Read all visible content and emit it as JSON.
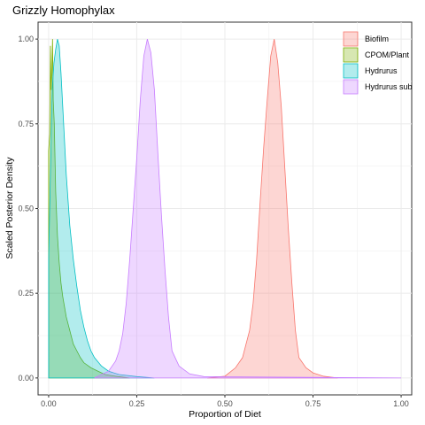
{
  "chart_data": {
    "type": "area",
    "title": "Grizzly Homophylax",
    "xlabel": "Proportion of Diet",
    "ylabel": "Scaled Posterior Density",
    "xlim": [
      -0.03,
      1.03
    ],
    "ylim": [
      -0.05,
      1.05
    ],
    "x_ticks": [
      0.0,
      0.25,
      0.5,
      0.75,
      1.0
    ],
    "x_tick_labels": [
      "0.00",
      "0.25",
      "0.50",
      "0.75",
      "1.00"
    ],
    "y_ticks": [
      0.0,
      0.25,
      0.5,
      0.75,
      1.0
    ],
    "y_tick_labels": [
      "0.00",
      "0.25",
      "0.50",
      "0.75",
      "1.00"
    ],
    "grid": true,
    "legend_position": "top-right",
    "series": [
      {
        "name": "Biofilm",
        "fill": "#F8766D",
        "stroke": "#F8766D",
        "points": [
          [
            0.45,
            0
          ],
          [
            0.5,
            0.005
          ],
          [
            0.53,
            0.03
          ],
          [
            0.55,
            0.06
          ],
          [
            0.57,
            0.14
          ],
          [
            0.58,
            0.22
          ],
          [
            0.59,
            0.35
          ],
          [
            0.6,
            0.52
          ],
          [
            0.61,
            0.68
          ],
          [
            0.62,
            0.82
          ],
          [
            0.63,
            0.95
          ],
          [
            0.64,
            1.0
          ],
          [
            0.65,
            0.93
          ],
          [
            0.66,
            0.8
          ],
          [
            0.67,
            0.62
          ],
          [
            0.68,
            0.44
          ],
          [
            0.69,
            0.28
          ],
          [
            0.7,
            0.14
          ],
          [
            0.71,
            0.06
          ],
          [
            0.73,
            0.03
          ],
          [
            0.75,
            0.015
          ],
          [
            0.78,
            0.005
          ],
          [
            0.82,
            0
          ]
        ]
      },
      {
        "name": "CPOM/Plant",
        "fill": "#7CAE00",
        "stroke": "#7CAE00",
        "points": [
          [
            0.0,
            0
          ],
          [
            0.0,
            0.67
          ],
          [
            0.003,
            0.72
          ],
          [
            0.005,
            0.98
          ],
          [
            0.007,
            0.85
          ],
          [
            0.009,
            0.9
          ],
          [
            0.011,
            1.0
          ],
          [
            0.013,
            0.82
          ],
          [
            0.016,
            0.75
          ],
          [
            0.02,
            0.55
          ],
          [
            0.025,
            0.42
          ],
          [
            0.03,
            0.34
          ],
          [
            0.035,
            0.28
          ],
          [
            0.04,
            0.24
          ],
          [
            0.05,
            0.18
          ],
          [
            0.06,
            0.14
          ],
          [
            0.07,
            0.1
          ],
          [
            0.08,
            0.08
          ],
          [
            0.09,
            0.06
          ],
          [
            0.1,
            0.045
          ],
          [
            0.12,
            0.03
          ],
          [
            0.14,
            0.02
          ],
          [
            0.16,
            0.01
          ],
          [
            0.19,
            0.005
          ],
          [
            0.23,
            0
          ]
        ]
      },
      {
        "name": "Hydrurus",
        "fill": "#00BFC4",
        "stroke": "#00BFC4",
        "points": [
          [
            0.0,
            0
          ],
          [
            0.0,
            0.35
          ],
          [
            0.005,
            0.6
          ],
          [
            0.01,
            0.85
          ],
          [
            0.015,
            0.93
          ],
          [
            0.02,
            0.97
          ],
          [
            0.025,
            1.0
          ],
          [
            0.03,
            0.98
          ],
          [
            0.035,
            0.9
          ],
          [
            0.04,
            0.8
          ],
          [
            0.05,
            0.6
          ],
          [
            0.06,
            0.45
          ],
          [
            0.07,
            0.35
          ],
          [
            0.08,
            0.27
          ],
          [
            0.09,
            0.2
          ],
          [
            0.1,
            0.15
          ],
          [
            0.11,
            0.11
          ],
          [
            0.12,
            0.08
          ],
          [
            0.13,
            0.06
          ],
          [
            0.15,
            0.035
          ],
          [
            0.17,
            0.02
          ],
          [
            0.2,
            0.01
          ],
          [
            0.25,
            0.004
          ],
          [
            0.3,
            0
          ]
        ]
      },
      {
        "name": "Hydrurus sub",
        "fill": "#C77CFF",
        "stroke": "#C77CFF",
        "points": [
          [
            0.13,
            0
          ],
          [
            0.17,
            0.02
          ],
          [
            0.19,
            0.05
          ],
          [
            0.2,
            0.08
          ],
          [
            0.21,
            0.13
          ],
          [
            0.22,
            0.22
          ],
          [
            0.23,
            0.35
          ],
          [
            0.24,
            0.5
          ],
          [
            0.25,
            0.65
          ],
          [
            0.26,
            0.82
          ],
          [
            0.27,
            0.95
          ],
          [
            0.28,
            1.0
          ],
          [
            0.29,
            0.96
          ],
          [
            0.3,
            0.85
          ],
          [
            0.31,
            0.66
          ],
          [
            0.32,
            0.48
          ],
          [
            0.33,
            0.32
          ],
          [
            0.34,
            0.18
          ],
          [
            0.35,
            0.08
          ],
          [
            0.37,
            0.035
          ],
          [
            0.4,
            0.012
          ],
          [
            0.44,
            0.004
          ],
          [
            1.0,
            0
          ]
        ]
      }
    ]
  }
}
